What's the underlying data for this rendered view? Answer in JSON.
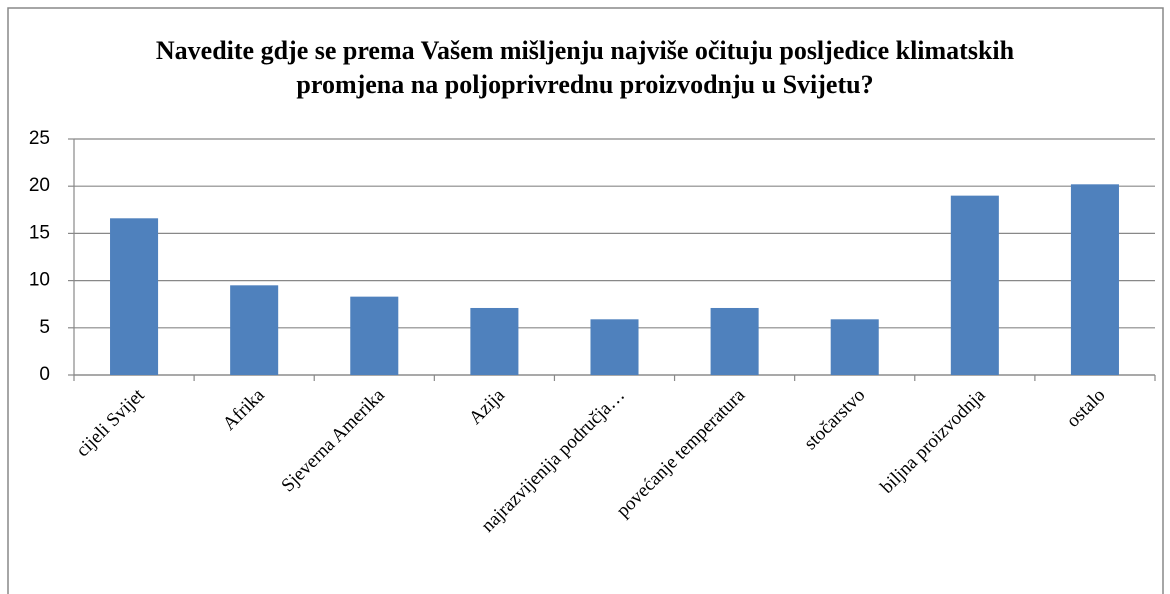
{
  "chart_data": {
    "type": "bar",
    "title": "Navedite gdje se prema Vašem mišljenju najviše očituju posljedice klimatskih promjena na poljoprivrednu proizvodnju u Svijetu?",
    "categories": [
      "cijeli Svijet",
      "Afrika",
      "Sjeverna Amerika",
      "Azija",
      "najrazvijenija područja…",
      "povećanje temperatura",
      "stočarstvo",
      "biljna proizvodnja",
      "ostalo"
    ],
    "values": [
      16.6,
      9.5,
      8.3,
      7.1,
      5.9,
      7.1,
      5.9,
      19.0,
      20.2
    ],
    "color": "#4f81bd",
    "ylim": [
      0,
      25
    ],
    "yticks": [
      0,
      5,
      10,
      15,
      20,
      25
    ],
    "grid": true
  }
}
